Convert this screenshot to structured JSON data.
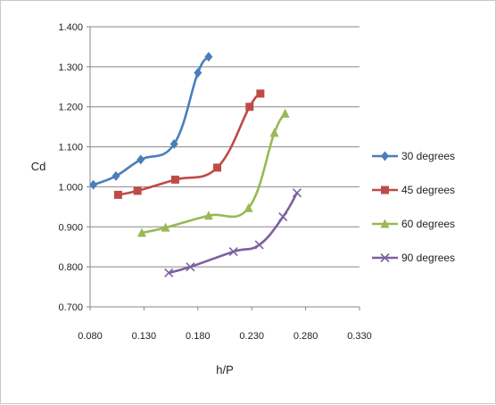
{
  "chart_data": {
    "type": "line",
    "title": "",
    "xlabel": "h/P",
    "ylabel": "Cd",
    "xlim": [
      0.08,
      0.33
    ],
    "ylim": [
      0.7,
      1.4
    ],
    "x_ticks": [
      "0.080",
      "0.130",
      "0.180",
      "0.230",
      "0.280",
      "0.330"
    ],
    "y_ticks": [
      "0.700",
      "0.800",
      "0.900",
      "1.000",
      "1.100",
      "1.200",
      "1.300",
      "1.400"
    ],
    "grid": "horizontal",
    "legend_position": "right",
    "series": [
      {
        "name": "30 degrees",
        "color": "#4a7ebb",
        "marker": "diamond",
        "points": [
          [
            0.083,
            1.005
          ],
          [
            0.104,
            1.027
          ],
          [
            0.127,
            1.068
          ],
          [
            0.158,
            1.107
          ],
          [
            0.18,
            1.285
          ],
          [
            0.19,
            1.325
          ]
        ]
      },
      {
        "name": "45 degrees",
        "color": "#be4b48",
        "marker": "square",
        "points": [
          [
            0.106,
            0.98
          ],
          [
            0.124,
            0.99
          ],
          [
            0.159,
            1.018
          ],
          [
            0.198,
            1.048
          ],
          [
            0.228,
            1.2
          ],
          [
            0.238,
            1.233
          ]
        ]
      },
      {
        "name": "60 degrees",
        "color": "#98b954",
        "marker": "triangle",
        "points": [
          [
            0.128,
            0.885
          ],
          [
            0.15,
            0.898
          ],
          [
            0.19,
            0.928
          ],
          [
            0.227,
            0.947
          ],
          [
            0.251,
            1.135
          ],
          [
            0.261,
            1.183
          ]
        ]
      },
      {
        "name": "90 degrees",
        "color": "#7d60a0",
        "marker": "x",
        "points": [
          [
            0.153,
            0.785
          ],
          [
            0.173,
            0.8
          ],
          [
            0.213,
            0.838
          ],
          [
            0.237,
            0.855
          ],
          [
            0.259,
            0.925
          ],
          [
            0.272,
            0.985
          ]
        ]
      }
    ]
  }
}
